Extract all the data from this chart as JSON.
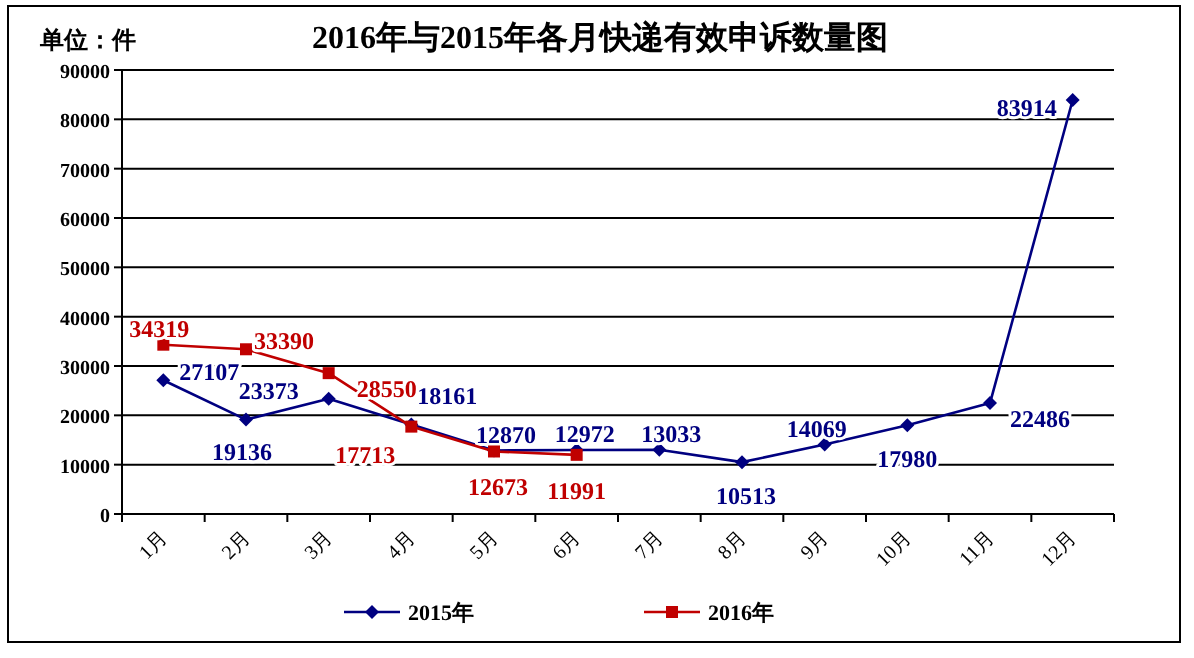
{
  "chart_data": {
    "type": "line",
    "title": "2016年与2015年各月快递有效申诉数量图",
    "annotations": [
      "单位：件"
    ],
    "categories": [
      "1月",
      "2月",
      "3月",
      "4月",
      "5月",
      "6月",
      "7月",
      "8月",
      "9月",
      "10月",
      "11月",
      "12月"
    ],
    "series": [
      {
        "name": "2015年",
        "color": "#000080",
        "marker": "diamond",
        "values": [
          27107,
          19136,
          23373,
          18161,
          12870,
          12972,
          13033,
          10513,
          14069,
          17980,
          22486,
          83914
        ]
      },
      {
        "name": "2016年",
        "color": "#c00000",
        "marker": "square",
        "values": [
          34319,
          33390,
          28550,
          17713,
          12673,
          11991,
          null,
          null,
          null,
          null,
          null,
          null
        ]
      }
    ],
    "ylim": [
      0,
      90000
    ],
    "yticks": [
      0,
      10000,
      20000,
      30000,
      40000,
      50000,
      60000,
      70000,
      80000,
      90000
    ],
    "grid": "y",
    "legend": "bottom",
    "data_labels": true
  }
}
